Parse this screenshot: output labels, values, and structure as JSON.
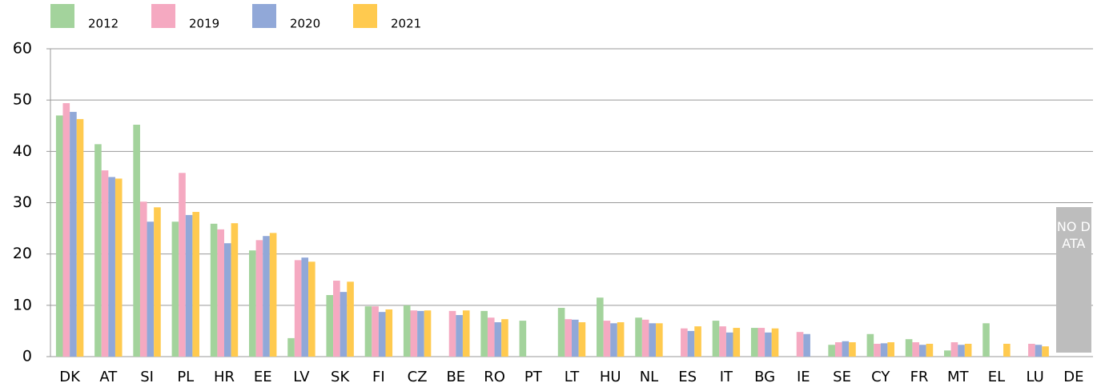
{
  "chart_data": {
    "type": "bar",
    "categories": [
      "DK",
      "AT",
      "SI",
      "PL",
      "HR",
      "EE",
      "LV",
      "SK",
      "FI",
      "CZ",
      "BE",
      "RO",
      "PT",
      "LT",
      "HU",
      "NL",
      "ES",
      "IT",
      "BG",
      "IE",
      "SE",
      "CY",
      "FR",
      "MT",
      "EL",
      "LU",
      "DE"
    ],
    "series": [
      {
        "name": "2012",
        "color": "#a3d39c",
        "values": [
          47.0,
          41.4,
          45.2,
          26.3,
          25.9,
          20.7,
          3.6,
          12.0,
          9.8,
          10.0,
          null,
          8.9,
          7.0,
          9.5,
          11.5,
          7.6,
          null,
          7.0,
          5.6,
          null,
          2.3,
          4.4,
          3.4,
          1.2,
          6.5,
          null,
          null
        ]
      },
      {
        "name": "2019",
        "color": "#f5a9c1",
        "values": [
          49.4,
          36.3,
          30.2,
          35.8,
          24.8,
          22.7,
          18.8,
          14.8,
          9.8,
          9.0,
          8.9,
          7.6,
          null,
          7.3,
          7.0,
          7.2,
          5.5,
          5.9,
          5.6,
          4.8,
          2.8,
          2.5,
          2.8,
          2.8,
          null,
          2.5,
          null
        ]
      },
      {
        "name": "2020",
        "color": "#91a8d8",
        "values": [
          47.7,
          35.0,
          26.3,
          27.6,
          22.1,
          23.5,
          19.3,
          12.6,
          8.7,
          8.9,
          8.1,
          6.7,
          null,
          7.2,
          6.5,
          6.5,
          5.0,
          4.7,
          4.7,
          4.4,
          3.0,
          2.6,
          2.3,
          2.3,
          null,
          2.3,
          null
        ]
      },
      {
        "name": "2021",
        "color": "#ffca4f",
        "values": [
          46.3,
          34.7,
          29.1,
          28.2,
          26.0,
          24.1,
          18.5,
          14.6,
          9.2,
          9.0,
          9.0,
          7.3,
          null,
          6.7,
          6.7,
          6.5,
          5.9,
          5.6,
          5.5,
          null,
          2.8,
          2.8,
          2.5,
          2.5,
          2.5,
          2.0,
          null
        ]
      }
    ],
    "annotations": [
      "NO DATA"
    ],
    "ylim": [
      0,
      60
    ],
    "yticks": [
      0,
      10,
      20,
      30,
      40,
      50,
      60
    ],
    "grid": true,
    "legend": "top"
  }
}
